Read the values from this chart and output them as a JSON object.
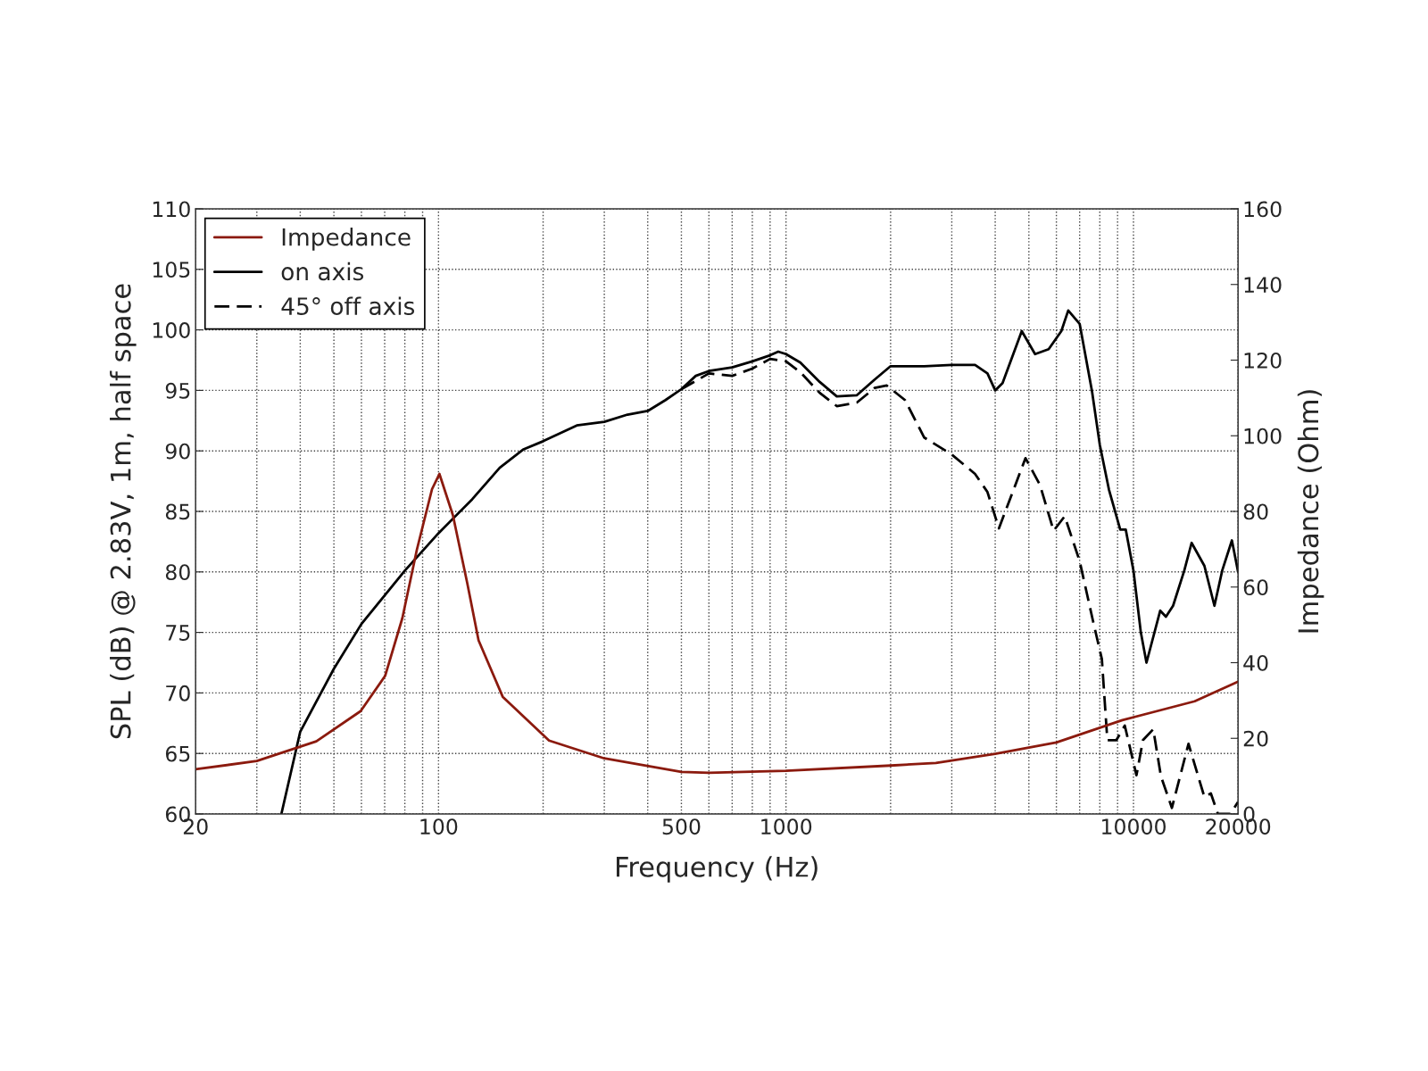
{
  "chart_data": {
    "type": "line",
    "xlabel": "Frequency (Hz)",
    "ylabel": "SPL (dB) @ 2.83V, 1m, half space",
    "y2label": "Impedance (Ohm)",
    "log": "x",
    "grid": true,
    "legend": "top left",
    "marker": "none",
    "xlim": [
      20,
      20000
    ],
    "xticks": [
      20,
      100,
      500,
      1000,
      10000,
      20000
    ],
    "ylim": [
      60,
      110
    ],
    "yticks": [
      60,
      65,
      70,
      75,
      80,
      85,
      90,
      95,
      100,
      105,
      110
    ],
    "y2lim": [
      0,
      160
    ],
    "y2ticks": [
      0,
      20,
      40,
      60,
      80,
      100,
      120,
      140,
      160
    ],
    "series": [
      {
        "name": "Impedance",
        "color": "#8b1a0e",
        "axis": "y2",
        "line_style": "solid",
        "x": [
          20,
          30,
          44.5,
          59.7,
          70.2,
          78.7,
          86.6,
          95.8,
          100.6,
          110,
          121,
          130.4,
          153,
          208,
          300,
          500,
          600,
          1000,
          2000,
          2700,
          4000,
          6000,
          9290,
          15000,
          20000
        ],
        "values": [
          11.8,
          14.0,
          19.2,
          27.2,
          36.5,
          51.8,
          69.8,
          85.9,
          89.9,
          79,
          61,
          45.9,
          31,
          19.4,
          14.7,
          11.1,
          10.9,
          11.4,
          12.8,
          13.5,
          15.9,
          18.9,
          24.8,
          29.8,
          35.0
        ]
      },
      {
        "name": "on axis",
        "color": "#000000",
        "line_style": "solid",
        "x": [
          35.3,
          40,
          50,
          60,
          80,
          100,
          125,
          150,
          175,
          200,
          250,
          300,
          350,
          400,
          450,
          500,
          550,
          600,
          700,
          800,
          900,
          950,
          1000,
          1100,
          1250,
          1400,
          1600,
          1800,
          2000,
          2500,
          3000,
          3500,
          3800,
          4000,
          4200,
          4770,
          5210,
          5700,
          6200,
          6490,
          7000,
          7600,
          8000,
          8500,
          9160,
          9500,
          10000,
          10500,
          10900,
          11940,
          12400,
          13000,
          14000,
          14700,
          16000,
          17100,
          18000,
          19200,
          20000
        ],
        "values": [
          60,
          66.8,
          72,
          75.7,
          80.1,
          83.2,
          86,
          88.6,
          90.1,
          90.8,
          92.1,
          92.4,
          93,
          93.3,
          94.2,
          95.1,
          96.2,
          96.6,
          96.9,
          97.4,
          97.9,
          98.2,
          98.0,
          97.3,
          95.7,
          94.5,
          94.6,
          95.9,
          97.0,
          97.0,
          97.1,
          97.1,
          96.4,
          95.0,
          95.6,
          99.9,
          98.0,
          98.4,
          99.9,
          101.6,
          100.5,
          94.9,
          90.5,
          86.8,
          83.5,
          83.5,
          80.1,
          75,
          72.5,
          76.8,
          76.3,
          77.2,
          80.1,
          82.4,
          80.5,
          77.2,
          80.1,
          82.6,
          80.0
        ]
      },
      {
        "name": "45° off axis",
        "color": "#000000",
        "line_style": "dashed",
        "x": [
          500,
          600,
          700,
          800,
          900,
          1000,
          1100,
          1250,
          1400,
          1600,
          1800,
          1950,
          2200,
          2500,
          3000,
          3500,
          3800,
          4100,
          4890,
          5380,
          5890,
          6340,
          7000,
          7640,
          8110,
          8410,
          8930,
          9440,
          10200,
          10650,
          11400,
          12000,
          12900,
          14400,
          16000,
          16700,
          17500,
          18000,
          19000,
          20000
        ],
        "values": [
          95.1,
          96.4,
          96.2,
          96.8,
          97.6,
          97.4,
          96.5,
          94.8,
          93.7,
          94.0,
          95.2,
          95.4,
          94.2,
          91.1,
          89.7,
          88.1,
          86.6,
          83.6,
          89.4,
          87.2,
          83.4,
          84.6,
          80.9,
          76.0,
          72.8,
          66.1,
          66.1,
          67.3,
          63.2,
          66.1,
          67.0,
          63.1,
          60.5,
          65.8,
          61.4,
          61.7,
          60,
          60,
          60,
          61.0
        ]
      }
    ]
  }
}
